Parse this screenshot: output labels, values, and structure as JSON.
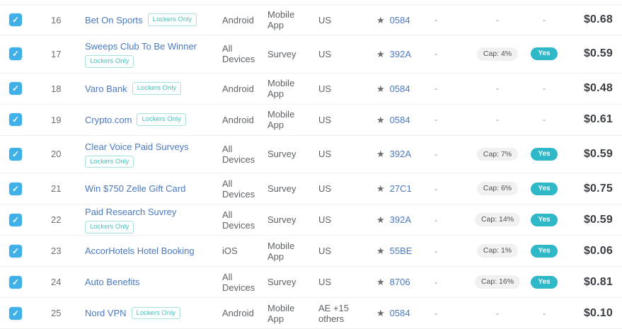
{
  "colors": {
    "checkbox_blue": "#3fb0e8",
    "link_blue": "#4a79c1",
    "badge_teal": "#4cc0ba",
    "yes_pill_teal": "#2fb8c8",
    "cap_pill_bg": "#f1f1f2",
    "price_text": "#3a3f45",
    "row_divider": "#eeeeef"
  },
  "table": {
    "rows": [
      {
        "num": "16",
        "name": "Bet On Sports",
        "badge": "Lockers Only",
        "badge_below": false,
        "device": "Android",
        "type": "Mobile App",
        "country": "US",
        "code": "0584",
        "dash": "-",
        "cap": "-",
        "approved": "-",
        "price": "$0.68",
        "checked": true
      },
      {
        "num": "17",
        "name": "Sweeps Club To Be Winner",
        "badge": "Lockers Only",
        "badge_below": true,
        "device": "All Devices",
        "type": "Survey",
        "country": "US",
        "code": "392A",
        "dash": "-",
        "cap": "Cap: 4%",
        "approved": "Yes",
        "price": "$0.59",
        "checked": true
      },
      {
        "num": "18",
        "name": "Varo Bank",
        "badge": "Lockers Only",
        "badge_below": false,
        "device": "Android",
        "type": "Mobile App",
        "country": "US",
        "code": "0584",
        "dash": "-",
        "cap": "-",
        "approved": "-",
        "price": "$0.48",
        "checked": true
      },
      {
        "num": "19",
        "name": "Crypto.com",
        "badge": "Lockers Only",
        "badge_below": false,
        "device": "Android",
        "type": "Mobile App",
        "country": "US",
        "code": "0584",
        "dash": "-",
        "cap": "-",
        "approved": "-",
        "price": "$0.61",
        "checked": true
      },
      {
        "num": "20",
        "name": "Clear Voice Paid Surveys",
        "badge": "Lockers Only",
        "badge_below": true,
        "device": "All Devices",
        "type": "Survey",
        "country": "US",
        "code": "392A",
        "dash": "-",
        "cap": "Cap: 7%",
        "approved": "Yes",
        "price": "$0.59",
        "checked": true
      },
      {
        "num": "21",
        "name": "Win $750 Zelle Gift Card",
        "badge": null,
        "badge_below": false,
        "device": "All Devices",
        "type": "Survey",
        "country": "US",
        "code": "27C1",
        "dash": "-",
        "cap": "Cap: 6%",
        "approved": "Yes",
        "price": "$0.75",
        "checked": true
      },
      {
        "num": "22",
        "name": "Paid Research Suvrey",
        "badge": "Lockers Only",
        "badge_below": false,
        "device": "All Devices",
        "type": "Survey",
        "country": "US",
        "code": "392A",
        "dash": "-",
        "cap": "Cap: 14%",
        "approved": "Yes",
        "price": "$0.59",
        "checked": true
      },
      {
        "num": "23",
        "name": "AccorHotels Hotel Booking",
        "badge": null,
        "badge_below": false,
        "device": "iOS",
        "type": "Mobile App",
        "country": "US",
        "code": "55BE",
        "dash": "-",
        "cap": "Cap: 1%",
        "approved": "Yes",
        "price": "$0.06",
        "checked": true
      },
      {
        "num": "24",
        "name": "Auto Benefits",
        "badge": null,
        "badge_below": false,
        "device": "All Devices",
        "type": "Survey",
        "country": "US",
        "code": "8706",
        "dash": "-",
        "cap": "Cap: 16%",
        "approved": "Yes",
        "price": "$0.81",
        "checked": true
      },
      {
        "num": "25",
        "name": "Nord VPN",
        "badge": "Lockers Only",
        "badge_below": false,
        "device": "Android",
        "type": "Mobile App",
        "country": "AE +15 others",
        "code": "0584",
        "dash": "-",
        "cap": "-",
        "approved": "-",
        "price": "$0.10",
        "checked": true
      }
    ]
  }
}
